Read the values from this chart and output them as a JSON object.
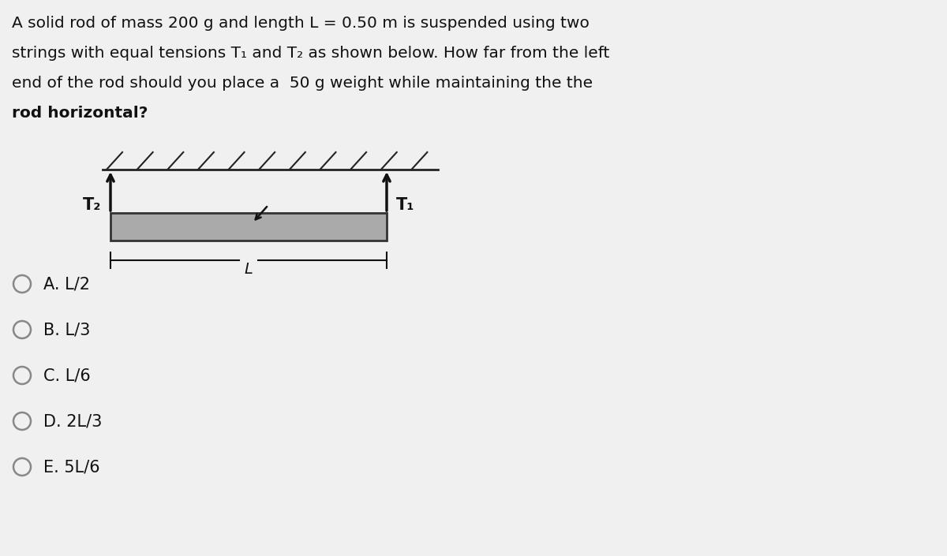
{
  "background_color": "#f0f0f0",
  "title_text_line1": "A solid rod of mass 200 g and length L = 0.50 m is suspended using two",
  "title_text_line2": "strings with equal tensions T₁ and T₂ as shown below. How far from the left",
  "title_text_line3": "end of the rod should you place a  50 g weight while maintaining the the",
  "title_text_line4": "rod horizontal?",
  "text_color": "#111111",
  "rod_color": "#aaaaaa",
  "rod_outline": "#333333",
  "hatch_color": "#222222",
  "arrow_color": "#111111",
  "options": [
    "A. L/2",
    "B. L/3",
    "C. L/6",
    "D. 2L/3",
    "E. 5L/6"
  ],
  "T1_label": "T₁",
  "T2_label": "T₂",
  "L_label": "L",
  "font_size_text": 14.5,
  "font_size_options": 15,
  "font_size_labels": 15
}
